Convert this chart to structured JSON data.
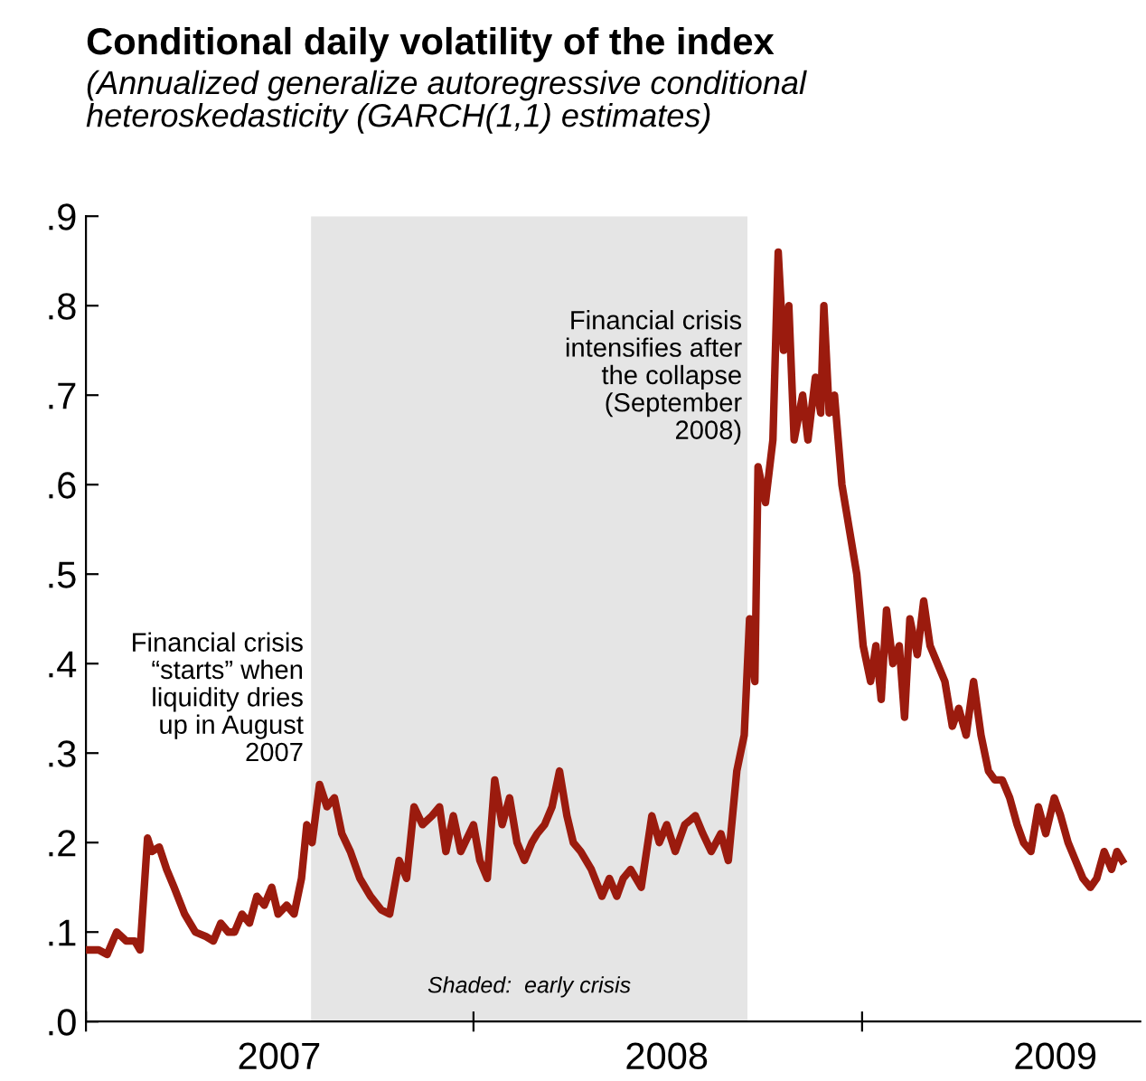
{
  "chart_data": {
    "type": "line",
    "title": "Conditional daily volatility of the index",
    "subtitle": "(Annualized generalize autoregressive conditional\nheteroskedasticity (GARCH(1,1) estimates)",
    "x": [
      "2007-01-01",
      "2007-01-13",
      "2007-01-21",
      "2007-01-30",
      "2007-02-08",
      "2007-02-16",
      "2007-02-21",
      "2007-02-28",
      "2007-03-04",
      "2007-03-11",
      "2007-03-18",
      "2007-03-25",
      "2007-04-04",
      "2007-04-14",
      "2007-04-24",
      "2007-05-01",
      "2007-05-08",
      "2007-05-15",
      "2007-05-21",
      "2007-05-28",
      "2007-06-04",
      "2007-06-11",
      "2007-06-18",
      "2007-06-25",
      "2007-07-01",
      "2007-07-09",
      "2007-07-16",
      "2007-07-23",
      "2007-07-28",
      "2007-08-02",
      "2007-08-09",
      "2007-08-16",
      "2007-08-23",
      "2007-08-30",
      "2007-09-07",
      "2007-09-16",
      "2007-09-26",
      "2007-10-06",
      "2007-10-14",
      "2007-10-23",
      "2007-10-30",
      "2007-11-06",
      "2007-11-14",
      "2007-11-23",
      "2007-11-30",
      "2007-12-06",
      "2007-12-13",
      "2007-12-20",
      "2008-01-01",
      "2008-01-07",
      "2008-01-14",
      "2008-01-21",
      "2008-01-28",
      "2008-02-04",
      "2008-02-11",
      "2008-02-18",
      "2008-02-25",
      "2008-03-01",
      "2008-03-08",
      "2008-03-15",
      "2008-03-22",
      "2008-03-29",
      "2008-04-04",
      "2008-04-11",
      "2008-04-21",
      "2008-05-01",
      "2008-05-08",
      "2008-05-15",
      "2008-05-21",
      "2008-05-28",
      "2008-06-07",
      "2008-06-17",
      "2008-06-24",
      "2008-07-01",
      "2008-07-09",
      "2008-07-18",
      "2008-07-28",
      "2008-08-04",
      "2008-08-12",
      "2008-08-21",
      "2008-08-28",
      "2008-09-05",
      "2008-09-12",
      "2008-09-17",
      "2008-09-22",
      "2008-09-25",
      "2008-10-02",
      "2008-10-09",
      "2008-10-14",
      "2008-10-19",
      "2008-10-24",
      "2008-10-29",
      "2008-11-06",
      "2008-11-11",
      "2008-11-18",
      "2008-11-23",
      "2008-11-26",
      "2008-12-01",
      "2008-12-06",
      "2008-12-13",
      "2008-12-20",
      "2008-12-27",
      "2009-01-02",
      "2009-01-09",
      "2009-01-14",
      "2009-01-19",
      "2009-01-24",
      "2009-01-30",
      "2009-02-05",
      "2009-02-10",
      "2009-02-15",
      "2009-02-22",
      "2009-02-28",
      "2009-03-06",
      "2009-03-13",
      "2009-03-20",
      "2009-03-27",
      "2009-04-02",
      "2009-04-09",
      "2009-04-16",
      "2009-04-23",
      "2009-04-30",
      "2009-05-06",
      "2009-05-13",
      "2009-05-20",
      "2009-05-27",
      "2009-06-02",
      "2009-06-09",
      "2009-06-16",
      "2009-06-23",
      "2009-07-01",
      "2009-07-07",
      "2009-07-14",
      "2009-07-21",
      "2009-07-28",
      "2009-08-04",
      "2009-08-10",
      "2009-08-17",
      "2009-08-24",
      "2009-08-29",
      "2009-09-03"
    ],
    "series": [
      {
        "color": "#9b1b0e",
        "values": [
          0.08,
          0.08,
          0.075,
          0.1,
          0.09,
          0.09,
          0.08,
          0.205,
          0.19,
          0.195,
          0.17,
          0.15,
          0.12,
          0.1,
          0.095,
          0.09,
          0.11,
          0.1,
          0.1,
          0.12,
          0.11,
          0.14,
          0.13,
          0.15,
          0.12,
          0.13,
          0.12,
          0.16,
          0.22,
          0.2,
          0.265,
          0.24,
          0.25,
          0.21,
          0.19,
          0.16,
          0.14,
          0.125,
          0.12,
          0.18,
          0.16,
          0.24,
          0.22,
          0.23,
          0.24,
          0.19,
          0.23,
          0.19,
          0.22,
          0.18,
          0.16,
          0.27,
          0.22,
          0.25,
          0.2,
          0.18,
          0.2,
          0.21,
          0.22,
          0.24,
          0.28,
          0.23,
          0.2,
          0.19,
          0.17,
          0.14,
          0.16,
          0.14,
          0.16,
          0.17,
          0.15,
          0.23,
          0.2,
          0.22,
          0.19,
          0.22,
          0.23,
          0.21,
          0.19,
          0.21,
          0.18,
          0.28,
          0.32,
          0.45,
          0.38,
          0.62,
          0.58,
          0.65,
          0.86,
          0.75,
          0.8,
          0.65,
          0.7,
          0.65,
          0.72,
          0.68,
          0.8,
          0.68,
          0.7,
          0.6,
          0.55,
          0.5,
          0.42,
          0.38,
          0.42,
          0.36,
          0.46,
          0.4,
          0.42,
          0.34,
          0.45,
          0.41,
          0.47,
          0.42,
          0.4,
          0.38,
          0.33,
          0.35,
          0.32,
          0.38,
          0.32,
          0.28,
          0.27,
          0.27,
          0.25,
          0.22,
          0.2,
          0.19,
          0.24,
          0.21,
          0.25,
          0.23,
          0.2,
          0.18,
          0.16,
          0.15,
          0.16,
          0.19,
          0.17,
          0.19,
          0.18
        ]
      }
    ],
    "xlim": [
      "2007-01-01",
      "2009-09-20"
    ],
    "xticks": [
      {
        "value": "2007-01-01",
        "label": null
      },
      {
        "value": "2007-07-02",
        "label": "2007"
      },
      {
        "value": "2008-01-01",
        "label": null
      },
      {
        "value": "2008-07-01",
        "label": "2008"
      },
      {
        "value": "2009-01-01",
        "label": null
      },
      {
        "value": "2009-07-02",
        "label": "2009"
      }
    ],
    "ylim": [
      0,
      0.9
    ],
    "yticks": [
      {
        "value": 0,
        "label": ".0"
      },
      {
        "value": 0.1,
        "label": ".1"
      },
      {
        "value": 0.2,
        "label": ".2"
      },
      {
        "value": 0.3,
        "label": ".3"
      },
      {
        "value": 0.4,
        "label": ".4"
      },
      {
        "value": 0.5,
        "label": ".5"
      },
      {
        "value": 0.6,
        "label": ".6"
      },
      {
        "value": 0.7,
        "label": ".7"
      },
      {
        "value": 0.8,
        "label": ".8"
      },
      {
        "value": 0.9,
        "label": ".9"
      }
    ],
    "bands": [
      {
        "axis": "x",
        "from": "2007-08-01",
        "to": "2008-09-15",
        "label": "Shaded:  early crisis",
        "color": "#e5e5e5"
      }
    ],
    "annotations": [
      {
        "text": "Financial crisis\n“starts” when\nliquidity dries\nup in August\n2007",
        "x": "2007-07-25",
        "y": 0.36
      },
      {
        "text": "Financial crisis\nintensifies after\nthe collapse\n(September\n2008)",
        "x": "2008-09-10",
        "y": 0.72
      }
    ],
    "grid": false,
    "legend": false,
    "marker": "none",
    "line_style": "solid"
  }
}
